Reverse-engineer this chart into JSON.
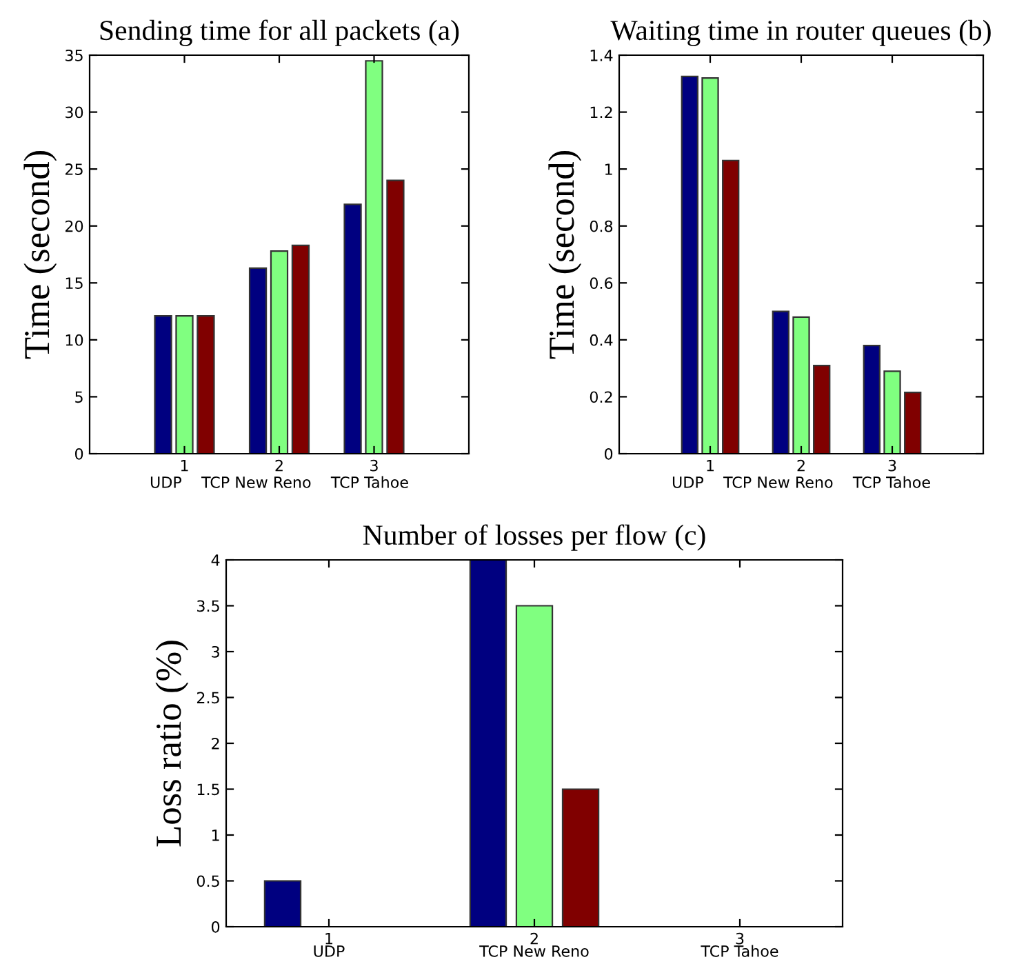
{
  "chart_data": [
    {
      "type": "bar",
      "title": "Sending time for all packets (a)",
      "ylabel": "Time (second)",
      "xlabel": "UDP    TCP New Reno    TCP Tahoe",
      "categories": [
        "1",
        "2",
        "3"
      ],
      "series": [
        {
          "color": "#000080",
          "values": [
            12.1,
            16.3,
            21.9
          ]
        },
        {
          "color": "#80ff80",
          "values": [
            12.1,
            17.8,
            34.5
          ]
        },
        {
          "color": "#800000",
          "values": [
            12.1,
            18.3,
            24.0
          ]
        }
      ],
      "ylim": [
        0,
        35
      ],
      "yticks": [
        0,
        5,
        10,
        15,
        20,
        25,
        30,
        35
      ],
      "grid": false,
      "legend": false
    },
    {
      "type": "bar",
      "title": "Waiting time in router queues (b)",
      "ylabel": "Time (second)",
      "xlabel": "UDP    TCP New Reno    TCP Tahoe",
      "categories": [
        "1",
        "2",
        "3"
      ],
      "series": [
        {
          "color": "#000080",
          "values": [
            1.325,
            0.5,
            0.38
          ]
        },
        {
          "color": "#80ff80",
          "values": [
            1.32,
            0.48,
            0.29
          ]
        },
        {
          "color": "#800000",
          "values": [
            1.03,
            0.31,
            0.215
          ]
        }
      ],
      "ylim": [
        0,
        1.4
      ],
      "yticks": [
        0,
        0.2,
        0.4,
        0.6,
        0.8,
        1,
        1.2,
        1.4
      ],
      "grid": false,
      "legend": false
    },
    {
      "type": "bar",
      "title": "Number of losses per flow (c)",
      "ylabel": "Loss ratio (%)",
      "categories": [
        "1",
        "2",
        "3"
      ],
      "annotations": [
        "UDP",
        "TCP New Reno",
        "TCP Tahoe"
      ],
      "series": [
        {
          "color": "#000080",
          "values": [
            0.5,
            4,
            null
          ]
        },
        {
          "color": "#80ff80",
          "values": [
            null,
            3.5,
            null
          ]
        },
        {
          "color": "#800000",
          "values": [
            null,
            1.5,
            null
          ]
        }
      ],
      "ylim": [
        0,
        4
      ],
      "yticks": [
        0,
        0.5,
        1,
        1.5,
        2,
        2.5,
        3,
        3.5,
        4
      ],
      "grid": false,
      "legend": false
    }
  ]
}
